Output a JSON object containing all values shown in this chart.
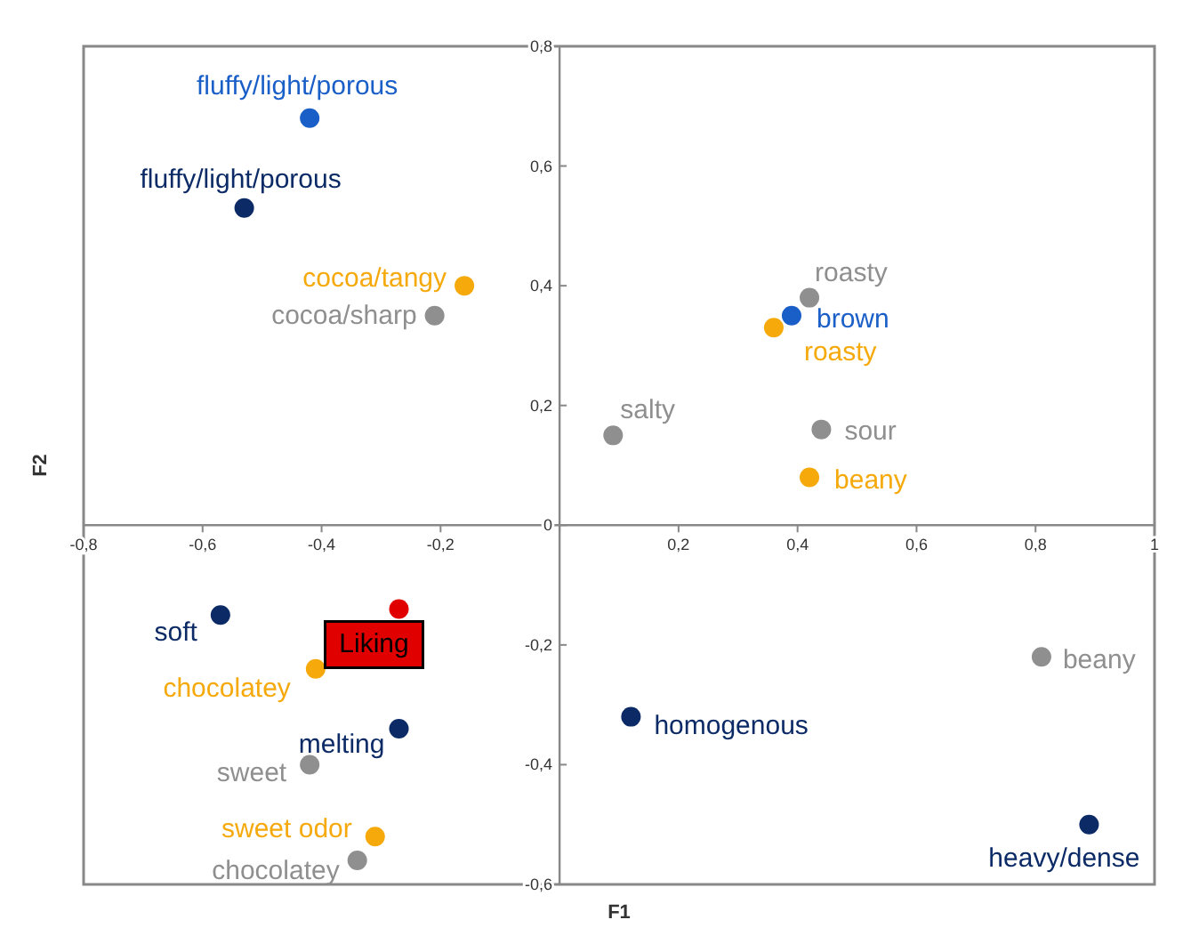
{
  "chart_data": {
    "type": "scatter",
    "xlabel": "F1",
    "ylabel": "F2",
    "marker": "circle",
    "grid": false,
    "xlim": [
      -0.8,
      1
    ],
    "xticks": [
      {
        "value": -0.8,
        "label": "-0,8"
      },
      {
        "value": -0.6,
        "label": "-0,6"
      },
      {
        "value": -0.4,
        "label": "-0,4"
      },
      {
        "value": -0.2,
        "label": "-0,2"
      },
      {
        "value": 0,
        "label": null
      },
      {
        "value": 0.2,
        "label": "0,2"
      },
      {
        "value": 0.4,
        "label": "0,4"
      },
      {
        "value": 0.6,
        "label": "0,6"
      },
      {
        "value": 0.8,
        "label": "0,8"
      },
      {
        "value": 1,
        "label": "1"
      }
    ],
    "ylim": [
      -0.6,
      0.8
    ],
    "yticks": [
      {
        "value": -0.6,
        "label": "-0,6"
      },
      {
        "value": -0.4,
        "label": "-0,4"
      },
      {
        "value": -0.2,
        "label": "-0,2"
      },
      {
        "value": 0,
        "label": "0"
      },
      {
        "value": 0.2,
        "label": "0,2"
      },
      {
        "value": 0.4,
        "label": "0,4"
      },
      {
        "value": 0.6,
        "label": "0,6"
      },
      {
        "value": 0.8,
        "label": "0,8"
      }
    ],
    "series": [
      {
        "color": "#1a5fc8",
        "x": [
          -0.42,
          0.39
        ],
        "values": [
          0.68,
          0.35
        ],
        "value_labels": [
          "fluffy/light/porous",
          "brown"
        ]
      },
      {
        "color": "#0b2a66",
        "x": [
          -0.53,
          -0.57,
          -0.27,
          0.12,
          0.89
        ],
        "values": [
          0.53,
          -0.15,
          -0.34,
          -0.32,
          -0.5
        ],
        "value_labels": [
          "fluffy/light/porous",
          "soft",
          "melting",
          "homogenous",
          "heavy/dense"
        ]
      },
      {
        "color": "#f5a90a",
        "x": [
          -0.16,
          0.36,
          0.42,
          -0.41,
          -0.31
        ],
        "values": [
          0.4,
          0.33,
          0.08,
          -0.24,
          -0.52
        ],
        "value_labels": [
          "cocoa/tangy",
          "roasty",
          "beany",
          "chocolatey",
          "sweet odor"
        ]
      },
      {
        "color": "#8f8f8f",
        "x": [
          -0.21,
          0.42,
          0.09,
          0.44,
          0.81,
          -0.42,
          -0.34
        ],
        "values": [
          0.35,
          0.38,
          0.15,
          0.16,
          -0.22,
          -0.4,
          -0.56
        ],
        "value_labels": [
          "cocoa/sharp",
          "roasty",
          "salty",
          "sour",
          "beany",
          "sweet",
          "chocolatey"
        ]
      },
      {
        "color": "#e00000",
        "x": [
          -0.27
        ],
        "values": [
          -0.14
        ]
      }
    ],
    "annotations": [
      {
        "text": "Liking",
        "x": -0.27,
        "y": -0.14
      }
    ]
  }
}
